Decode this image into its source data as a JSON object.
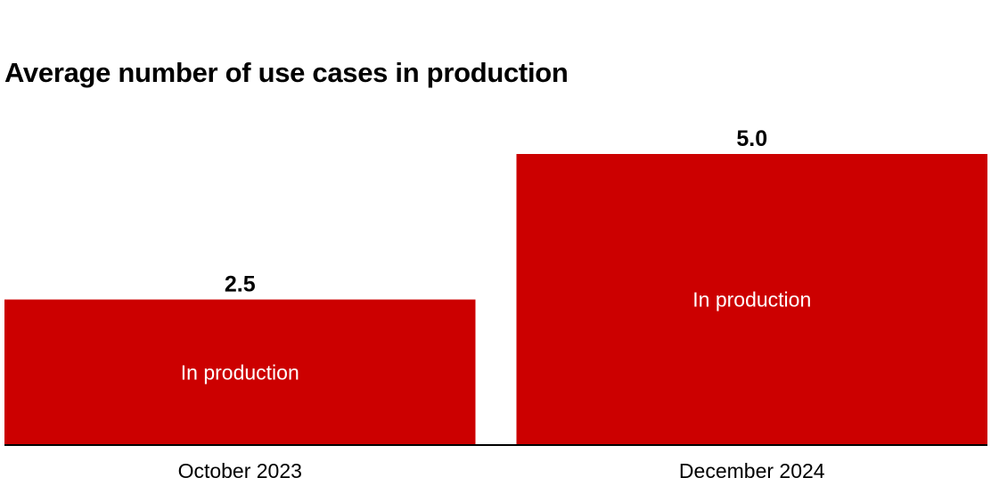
{
  "colors": {
    "bar": "#cc0000",
    "baseline": "#000000",
    "bar_text": "#ffffff",
    "text": "#000000",
    "background": "#ffffff"
  },
  "chart_data": {
    "type": "bar",
    "title": "Average number of use cases in production",
    "categories": [
      "October 2023",
      "December 2024"
    ],
    "series": [
      {
        "name": "In production",
        "values": [
          2.5,
          5.0
        ],
        "value_labels": [
          "2.5",
          "5.0"
        ]
      }
    ],
    "ylim": [
      0,
      5.0
    ],
    "grid": false,
    "legend": "none",
    "xlabel": "",
    "ylabel": ""
  }
}
